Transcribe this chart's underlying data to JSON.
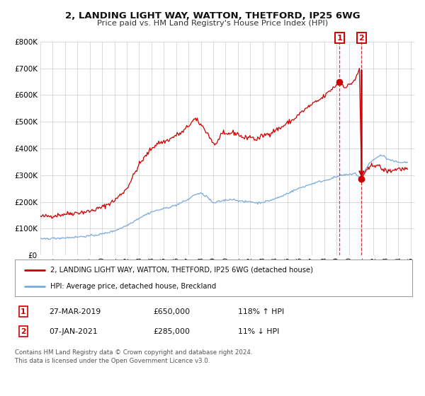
{
  "title": "2, LANDING LIGHT WAY, WATTON, THETFORD, IP25 6WG",
  "subtitle": "Price paid vs. HM Land Registry's House Price Index (HPI)",
  "legend_red": "2, LANDING LIGHT WAY, WATTON, THETFORD, IP25 6WG (detached house)",
  "legend_blue": "HPI: Average price, detached house, Breckland",
  "ann1_label": "1",
  "ann1_date": "27-MAR-2019",
  "ann1_price": "£650,000",
  "ann1_hpi": "118% ↑ HPI",
  "ann1_year": 2019.23,
  "ann1_red_y": 650000,
  "ann2_label": "2",
  "ann2_date": "07-JAN-2021",
  "ann2_price": "£285,000",
  "ann2_hpi": "11% ↓ HPI",
  "ann2_year": 2021.02,
  "ann2_red_y": 285000,
  "ann2_red_y_top": 700000,
  "ylim": [
    0,
    800000
  ],
  "xlim_start": 1995.0,
  "xlim_end": 2025.3,
  "copyright": "Contains HM Land Registry data © Crown copyright and database right 2024.\nThis data is licensed under the Open Government Licence v3.0.",
  "bg_color": "#ffffff",
  "grid_color": "#cccccc",
  "red_color": "#cc0000",
  "blue_color": "#7aaadd",
  "shade_color": "#e8f0ff"
}
